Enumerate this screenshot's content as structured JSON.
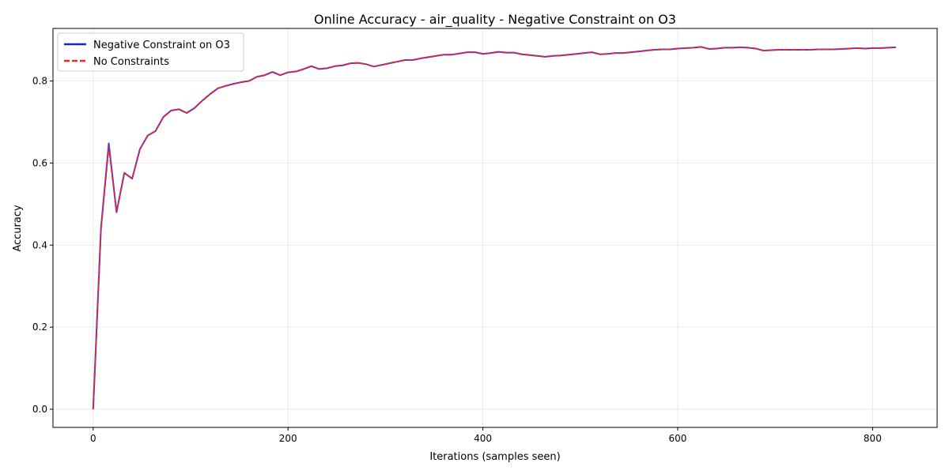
{
  "chart_data": {
    "type": "line",
    "title": "Online Accuracy - air_quality - Negative Constraint on O3",
    "xlabel": "Iterations (samples seen)",
    "ylabel": "Accuracy",
    "xlim": [
      -41.25,
      866.25
    ],
    "ylim": [
      -0.0442,
      0.928
    ],
    "xticks": [
      0,
      200,
      400,
      600,
      800
    ],
    "yticks": [
      0.0,
      0.2,
      0.4,
      0.6,
      0.8
    ],
    "xtick_labels": [
      "0",
      "200",
      "400",
      "600",
      "800"
    ],
    "ytick_labels": [
      "0.0",
      "0.2",
      "0.4",
      "0.6",
      "0.8"
    ],
    "grid": true,
    "legend_position": "top-left",
    "x": [
      0,
      8,
      16,
      24,
      32,
      40,
      48,
      56,
      64,
      72,
      80,
      88,
      96,
      104,
      112,
      120,
      128,
      136,
      144,
      152,
      160,
      168,
      176,
      184,
      192,
      200,
      208,
      216,
      224,
      232,
      240,
      248,
      256,
      264,
      272,
      280,
      288,
      296,
      304,
      312,
      320,
      328,
      336,
      344,
      352,
      360,
      368,
      376,
      384,
      392,
      400,
      408,
      416,
      424,
      432,
      440,
      448,
      456,
      464,
      472,
      480,
      488,
      496,
      504,
      512,
      520,
      528,
      536,
      544,
      552,
      560,
      568,
      576,
      584,
      592,
      600,
      608,
      616,
      624,
      632,
      640,
      648,
      656,
      664,
      672,
      680,
      688,
      696,
      704,
      712,
      720,
      728,
      736,
      744,
      752,
      760,
      768,
      776,
      784,
      792,
      800,
      808,
      816,
      824
    ],
    "series": [
      {
        "name": "Negative Constraint on O3",
        "color": "#2020e0",
        "style": "solid",
        "values": [
          0.0,
          0.44,
          0.648,
          0.48,
          0.576,
          0.562,
          0.634,
          0.667,
          0.678,
          0.712,
          0.728,
          0.731,
          0.722,
          0.734,
          0.752,
          0.768,
          0.782,
          0.788,
          0.793,
          0.797,
          0.8,
          0.81,
          0.814,
          0.822,
          0.814,
          0.821,
          0.823,
          0.829,
          0.836,
          0.829,
          0.831,
          0.836,
          0.838,
          0.843,
          0.844,
          0.841,
          0.835,
          0.839,
          0.843,
          0.847,
          0.851,
          0.851,
          0.855,
          0.858,
          0.861,
          0.864,
          0.864,
          0.867,
          0.87,
          0.87,
          0.866,
          0.868,
          0.871,
          0.869,
          0.869,
          0.865,
          0.863,
          0.861,
          0.859,
          0.861,
          0.862,
          0.864,
          0.866,
          0.868,
          0.87,
          0.865,
          0.866,
          0.868,
          0.868,
          0.87,
          0.872,
          0.874,
          0.876,
          0.877,
          0.877,
          0.879,
          0.88,
          0.881,
          0.883,
          0.878,
          0.879,
          0.881,
          0.881,
          0.882,
          0.881,
          0.879,
          0.874,
          0.875,
          0.876,
          0.876,
          0.876,
          0.876,
          0.876,
          0.877,
          0.877,
          0.877,
          0.878,
          0.879,
          0.88,
          0.879,
          0.88,
          0.88,
          0.881,
          0.882
        ]
      },
      {
        "name": "No Constraints",
        "color": "#ff2020",
        "style": "dashed",
        "values": [
          0.0,
          0.44,
          0.64,
          0.482,
          0.576,
          0.562,
          0.634,
          0.667,
          0.678,
          0.712,
          0.728,
          0.731,
          0.722,
          0.734,
          0.752,
          0.768,
          0.782,
          0.788,
          0.793,
          0.797,
          0.8,
          0.81,
          0.814,
          0.822,
          0.814,
          0.821,
          0.823,
          0.829,
          0.836,
          0.829,
          0.831,
          0.836,
          0.838,
          0.843,
          0.844,
          0.841,
          0.835,
          0.839,
          0.843,
          0.847,
          0.851,
          0.851,
          0.855,
          0.858,
          0.861,
          0.864,
          0.864,
          0.867,
          0.87,
          0.87,
          0.866,
          0.868,
          0.871,
          0.869,
          0.869,
          0.865,
          0.863,
          0.861,
          0.859,
          0.861,
          0.862,
          0.864,
          0.866,
          0.868,
          0.87,
          0.865,
          0.866,
          0.868,
          0.868,
          0.87,
          0.872,
          0.874,
          0.876,
          0.877,
          0.877,
          0.879,
          0.88,
          0.881,
          0.883,
          0.878,
          0.879,
          0.881,
          0.881,
          0.882,
          0.881,
          0.879,
          0.874,
          0.875,
          0.876,
          0.876,
          0.876,
          0.876,
          0.876,
          0.877,
          0.877,
          0.877,
          0.878,
          0.879,
          0.88,
          0.879,
          0.88,
          0.88,
          0.881,
          0.882
        ]
      }
    ]
  }
}
